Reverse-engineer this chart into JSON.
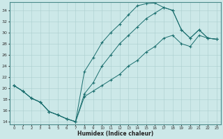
{
  "xlabel": "Humidex (Indice chaleur)",
  "xlim": [
    -0.5,
    23.5
  ],
  "ylim": [
    13.5,
    35.5
  ],
  "yticks": [
    14,
    16,
    18,
    20,
    22,
    24,
    26,
    28,
    30,
    32,
    34
  ],
  "xticks": [
    0,
    1,
    2,
    3,
    4,
    5,
    6,
    7,
    8,
    9,
    10,
    11,
    12,
    13,
    14,
    15,
    16,
    17,
    18,
    19,
    20,
    21,
    22,
    23
  ],
  "bg_color": "#cce8e8",
  "line_color": "#1a6e6e",
  "line1_x": [
    0,
    1,
    2,
    3,
    4,
    5,
    6,
    7,
    8,
    9,
    10,
    11,
    12,
    13,
    14,
    15,
    16,
    17,
    18,
    19,
    20,
    21,
    22,
    23
  ],
  "line1_y": [
    20.5,
    19.5,
    18.2,
    17.5,
    15.8,
    15.2,
    14.5,
    14.0,
    23.0,
    25.5,
    28.2,
    30.0,
    31.5,
    33.2,
    34.8,
    35.2,
    35.3,
    34.5,
    34.0,
    30.5,
    29.0,
    30.5,
    29.0,
    28.8
  ],
  "line2_x": [
    0,
    1,
    2,
    3,
    4,
    5,
    6,
    7,
    8,
    9,
    10,
    11,
    12,
    13,
    14,
    15,
    16,
    17,
    18,
    19,
    20,
    21,
    22,
    23
  ],
  "line2_y": [
    20.5,
    19.5,
    18.2,
    17.5,
    15.8,
    15.2,
    14.5,
    14.0,
    19.0,
    21.0,
    24.0,
    26.0,
    28.0,
    29.5,
    31.0,
    32.5,
    33.5,
    34.5,
    34.0,
    30.5,
    29.0,
    30.5,
    29.0,
    28.8
  ],
  "line3_x": [
    0,
    1,
    2,
    3,
    4,
    5,
    6,
    7,
    8,
    9,
    10,
    11,
    12,
    13,
    14,
    15,
    16,
    17,
    18,
    19,
    20,
    21,
    22,
    23
  ],
  "line3_y": [
    20.5,
    19.5,
    18.2,
    17.5,
    15.8,
    15.2,
    14.5,
    14.0,
    18.5,
    19.5,
    20.5,
    21.5,
    22.5,
    24.0,
    25.0,
    26.5,
    27.5,
    29.0,
    29.5,
    28.0,
    27.5,
    29.5,
    29.0,
    28.8
  ]
}
